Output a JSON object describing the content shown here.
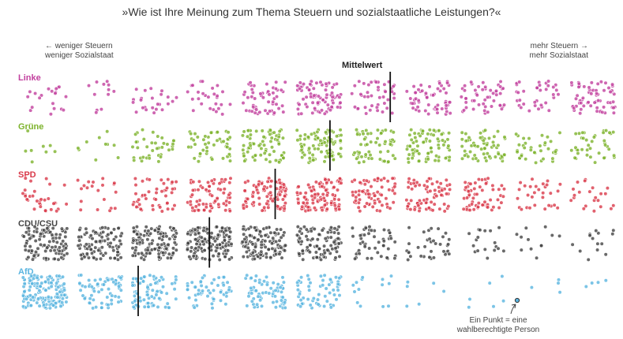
{
  "title": "»Wie ist Ihre Meinung zum Thema Steuern und sozialstaatliche Leistungen?«",
  "left_note": {
    "line1": "← weniger Steuern",
    "line2": "weniger Sozialstaat"
  },
  "right_note": {
    "line1": "mehr Steuern →",
    "line2": "mehr Sozialstaat"
  },
  "annotation": {
    "line1": "Ein Punkt = eine",
    "line2": "wahlberechtigte Person"
  },
  "chart_data": {
    "type": "scatter",
    "title": "»Wie ist Ihre Meinung zum Thema Steuern und sozialstaatliche Leistungen?«",
    "scale": {
      "categories": [
        1,
        2,
        3,
        4,
        5,
        6,
        7,
        8,
        9,
        10,
        11
      ],
      "xlim": [
        1,
        11
      ]
    },
    "mean_label": "Mittelwert",
    "unit": "Ein Punkt = eine wahlberechtigte Person",
    "series": [
      {
        "name": "Linke",
        "color": "#c2409e",
        "counts": [
          20,
          12,
          24,
          27,
          55,
          80,
          45,
          60,
          50,
          35,
          65
        ],
        "mean": 7.3
      },
      {
        "name": "Grüne",
        "color": "#7db32c",
        "counts": [
          8,
          10,
          38,
          48,
          75,
          100,
          60,
          78,
          65,
          38,
          40
        ],
        "mean": 6.2
      },
      {
        "name": "SPD",
        "color": "#d93a4a",
        "counts": [
          32,
          20,
          48,
          72,
          95,
          110,
          70,
          72,
          58,
          30,
          22
        ],
        "mean": 5.2
      },
      {
        "name": "CDU/CSU",
        "color": "#444444",
        "counts": [
          110,
          100,
          130,
          150,
          120,
          100,
          50,
          36,
          18,
          12,
          14
        ],
        "mean": 4.0
      },
      {
        "name": "AfD",
        "color": "#5ab5e0",
        "counts": [
          150,
          70,
          80,
          55,
          70,
          60,
          14,
          6,
          6,
          4,
          4
        ],
        "mean": 2.7
      }
    ]
  }
}
